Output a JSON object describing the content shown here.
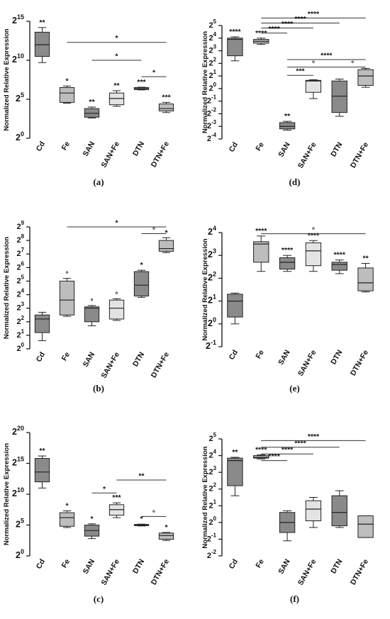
{
  "chart_data": [
    {
      "panel": "(a)",
      "type": "box",
      "ylabel": "Normalized Relative Expression",
      "yscale": "log2",
      "ylim": [
        0,
        15
      ],
      "yticks": [
        0,
        5,
        10,
        15
      ],
      "categories": [
        "Cd",
        "Fe",
        "SAN",
        "SAN+Fe",
        "DTN",
        "DTN+Fe"
      ],
      "boxes": [
        {
          "min": 9.7,
          "q1": 10.5,
          "median": 12.0,
          "q3": 13.6,
          "max": 14.2,
          "fill": "#8a8a8a",
          "label": "**"
        },
        {
          "min": 4.5,
          "q1": 4.6,
          "median": 5.8,
          "q3": 6.5,
          "max": 6.7,
          "fill": "#bdbdbd",
          "label": "*"
        },
        {
          "min": 2.6,
          "q1": 2.7,
          "median": 3.2,
          "q3": 3.8,
          "max": 4.0,
          "fill": "#8a8a8a",
          "label": "**"
        },
        {
          "min": 4.1,
          "q1": 4.3,
          "median": 5.1,
          "q3": 5.8,
          "max": 6.1,
          "fill": "#e3e3e3",
          "label": "**"
        },
        {
          "min": 6.2,
          "q1": 6.25,
          "median": 6.35,
          "q3": 6.5,
          "max": 6.55,
          "fill": "#8a8a8a",
          "label": "***"
        },
        {
          "min": 3.3,
          "q1": 3.5,
          "median": 3.8,
          "q3": 4.4,
          "max": 4.6,
          "fill": "#bdbdbd",
          "label": "***"
        }
      ],
      "brackets": [
        {
          "from": 1,
          "to": 5,
          "level": 12.3,
          "label": "*"
        },
        {
          "from": 2,
          "to": 4,
          "level": 10.0,
          "label": "*"
        },
        {
          "from": 4,
          "to": 5,
          "level": 7.9,
          "label": "*"
        }
      ]
    },
    {
      "panel": "(b)",
      "type": "box",
      "ylabel": "Normalized Relative Expression",
      "yscale": "log2",
      "ylim": [
        0,
        9
      ],
      "yticks": [
        0,
        1,
        2,
        3,
        4,
        5,
        6,
        7,
        8,
        9
      ],
      "categories": [
        "Cd",
        "Fe",
        "SAN",
        "SAN+Fe",
        "DTN",
        "DTN+Fe"
      ],
      "boxes": [
        {
          "min": 0.6,
          "q1": 1.2,
          "median": 2.2,
          "q3": 2.5,
          "max": 2.7,
          "fill": "#8a8a8a",
          "label": ""
        },
        {
          "min": 2.4,
          "q1": 2.5,
          "median": 3.6,
          "q3": 5.0,
          "max": 5.2,
          "fill": "#bdbdbd",
          "label": "°"
        },
        {
          "min": 1.7,
          "q1": 2.0,
          "median": 3.0,
          "q3": 3.1,
          "max": 3.2,
          "fill": "#8a8a8a",
          "label": "°"
        },
        {
          "min": 2.1,
          "q1": 2.2,
          "median": 3.0,
          "q3": 3.6,
          "max": 3.7,
          "fill": "#e3e3e3",
          "label": "°"
        },
        {
          "min": 3.8,
          "q1": 3.9,
          "median": 4.7,
          "q3": 5.7,
          "max": 5.8,
          "fill": "#8a8a8a",
          "label": "*"
        },
        {
          "min": 7.1,
          "q1": 7.2,
          "median": 7.4,
          "q3": 8.0,
          "max": 8.2,
          "fill": "#bdbdbd",
          "label": "*"
        }
      ],
      "brackets": [
        {
          "from": 1,
          "to": 5,
          "level": 9.0,
          "label": "*"
        },
        {
          "from": 4,
          "to": 5,
          "level": 8.5,
          "label": "°"
        }
      ]
    },
    {
      "panel": "(c)",
      "type": "box",
      "ylabel": "Normalized Relative Expression",
      "yscale": "log2",
      "ylim": [
        0,
        20
      ],
      "yticks": [
        0,
        5,
        10,
        15,
        20
      ],
      "categories": [
        "Cd",
        "Fe",
        "SAN",
        "SAN+Fe",
        "DTN",
        "DTN+Fe"
      ],
      "boxes": [
        {
          "min": 11.0,
          "q1": 12.0,
          "median": 13.6,
          "q3": 15.8,
          "max": 16.2,
          "fill": "#8a8a8a",
          "label": "**"
        },
        {
          "min": 4.6,
          "q1": 4.8,
          "median": 6.2,
          "q3": 7.0,
          "max": 7.3,
          "fill": "#bdbdbd",
          "label": "*"
        },
        {
          "min": 2.8,
          "q1": 3.2,
          "median": 4.1,
          "q3": 5.0,
          "max": 5.2,
          "fill": "#8a8a8a",
          "label": "*"
        },
        {
          "min": 6.2,
          "q1": 6.6,
          "median": 7.5,
          "q3": 8.3,
          "max": 8.6,
          "fill": "#e3e3e3",
          "label": "***"
        },
        {
          "min": 4.85,
          "q1": 4.9,
          "median": 5.0,
          "q3": 5.1,
          "max": 5.15,
          "fill": "#8a8a8a",
          "label": "*"
        },
        {
          "min": 2.5,
          "q1": 2.7,
          "median": 3.3,
          "q3": 3.7,
          "max": 3.8,
          "fill": "#bdbdbd",
          "label": "*"
        }
      ],
      "brackets": [
        {
          "from": 3,
          "to": 5,
          "level": 12.3,
          "label": "**"
        },
        {
          "from": 2,
          "to": 3,
          "level": 10.2,
          "label": "*"
        },
        {
          "from": 4,
          "to": 5,
          "level": 6.4,
          "label": "°"
        }
      ]
    },
    {
      "panel": "(d)",
      "type": "box",
      "ylabel": "Normalized Relative Expression",
      "yscale": "log2",
      "ylim": [
        -4,
        5
      ],
      "yticks": [
        -4,
        -3,
        -2,
        -1,
        0,
        1,
        2,
        3,
        4,
        5
      ],
      "categories": [
        "Cd",
        "Fe",
        "SAN",
        "SAN+Fe",
        "DTN",
        "DTN+Fe"
      ],
      "boxes": [
        {
          "min": 2.2,
          "q1": 2.6,
          "median": 3.9,
          "q3": 4.0,
          "max": 4.1,
          "fill": "#8a8a8a",
          "label": "****"
        },
        {
          "min": 3.5,
          "q1": 3.6,
          "median": 3.75,
          "q3": 3.9,
          "max": 4.0,
          "fill": "#bdbdbd",
          "label": "****"
        },
        {
          "min": -3.3,
          "q1": -3.2,
          "median": -3.0,
          "q3": -2.7,
          "max": -2.6,
          "fill": "#8a8a8a",
          "label": "**"
        },
        {
          "min": -0.8,
          "q1": -0.3,
          "median": 0.6,
          "q3": 0.65,
          "max": 0.7,
          "fill": "#e3e3e3",
          "label": ""
        },
        {
          "min": -2.2,
          "q1": -1.9,
          "median": -0.6,
          "q3": 0.6,
          "max": 0.75,
          "fill": "#8a8a8a",
          "label": ""
        },
        {
          "min": 0.1,
          "q1": 0.25,
          "median": 1.0,
          "q3": 1.5,
          "max": 1.6,
          "fill": "#bdbdbd",
          "label": ""
        }
      ],
      "brackets": [
        {
          "from": 1,
          "to": 5,
          "level": 5.6,
          "label": "****"
        },
        {
          "from": 1,
          "to": 4,
          "level": 5.2,
          "label": "****"
        },
        {
          "from": 1,
          "to": 3,
          "level": 4.8,
          "label": "****"
        },
        {
          "from": 1,
          "to": 2,
          "level": 4.4,
          "label": "****"
        },
        {
          "from": 2,
          "to": 5,
          "level": 2.3,
          "label": "****"
        },
        {
          "from": 2,
          "to": 4,
          "level": 1.7,
          "label": "°"
        },
        {
          "from": 2,
          "to": 3,
          "level": 1.05,
          "label": "***"
        },
        {
          "from": 4,
          "to": 5,
          "level": 1.7,
          "label": "°"
        }
      ]
    },
    {
      "panel": "(e)",
      "type": "box",
      "ylabel": "Normalized Relative Expression",
      "yscale": "log2",
      "ylim": [
        -1,
        4
      ],
      "yticks": [
        -1,
        0,
        1,
        2,
        3,
        4
      ],
      "categories": [
        "Cd",
        "Fe",
        "SAN",
        "SAN+Fe",
        "DTN",
        "DTN+Fe"
      ],
      "boxes": [
        {
          "min": 0.0,
          "q1": 0.3,
          "median": 1.0,
          "q3": 1.3,
          "max": 1.35,
          "fill": "#8a8a8a",
          "label": ""
        },
        {
          "min": 2.3,
          "q1": 2.7,
          "median": 3.5,
          "q3": 3.6,
          "max": 3.85,
          "fill": "#bdbdbd",
          "label": "****"
        },
        {
          "min": 2.3,
          "q1": 2.4,
          "median": 2.7,
          "q3": 2.9,
          "max": 3.0,
          "fill": "#8a8a8a",
          "label": "****"
        },
        {
          "min": 2.3,
          "q1": 2.55,
          "median": 3.2,
          "q3": 3.55,
          "max": 3.65,
          "fill": "#e3e3e3",
          "label": "****"
        },
        {
          "min": 2.2,
          "q1": 2.35,
          "median": 2.6,
          "q3": 2.7,
          "max": 2.8,
          "fill": "#8a8a8a",
          "label": "****"
        },
        {
          "min": 1.4,
          "q1": 1.45,
          "median": 1.8,
          "q3": 2.45,
          "max": 2.65,
          "fill": "#bdbdbd",
          "label": "**"
        }
      ],
      "brackets": [
        {
          "from": 1,
          "to": 5,
          "level": 3.95,
          "label": "°"
        }
      ]
    },
    {
      "panel": "(f)",
      "type": "box",
      "ylabel": "Normalized Relative Expression",
      "yscale": "log2",
      "ylim": [
        -2,
        5
      ],
      "yticks": [
        -2,
        -1,
        0,
        1,
        2,
        3,
        4,
        5
      ],
      "categories": [
        "Cd",
        "Fe",
        "SAN",
        "SAN+Fe",
        "DTN",
        "DTN+Fe"
      ],
      "boxes": [
        {
          "min": 1.6,
          "q1": 2.2,
          "median": 3.7,
          "q3": 3.85,
          "max": 3.9,
          "fill": "#8a8a8a",
          "label": "**"
        },
        {
          "min": 3.8,
          "q1": 3.85,
          "median": 3.9,
          "q3": 4.0,
          "max": 4.05,
          "fill": "#bdbdbd",
          "label": "****"
        },
        {
          "min": -1.1,
          "q1": -0.6,
          "median": 0.0,
          "q3": 0.6,
          "max": 0.7,
          "fill": "#8a8a8a",
          "label": ""
        },
        {
          "min": -0.3,
          "q1": 0.1,
          "median": 0.8,
          "q3": 1.3,
          "max": 1.5,
          "fill": "#e3e3e3",
          "label": ""
        },
        {
          "min": -0.3,
          "q1": -0.2,
          "median": 0.6,
          "q3": 1.6,
          "max": 1.9,
          "fill": "#8a8a8a",
          "label": ""
        },
        {
          "min": -0.9,
          "q1": -0.9,
          "median": -0.1,
          "q3": 0.4,
          "max": 0.4,
          "fill": "#bdbdbd",
          "label": ""
        }
      ],
      "brackets": [
        {
          "from": 1,
          "to": 5,
          "level": 4.9,
          "label": "****"
        },
        {
          "from": 1,
          "to": 4,
          "level": 4.5,
          "label": "****"
        },
        {
          "from": 1,
          "to": 3,
          "level": 4.1,
          "label": "****"
        },
        {
          "from": 1,
          "to": 2,
          "level": 3.7,
          "label": "****"
        }
      ]
    }
  ]
}
